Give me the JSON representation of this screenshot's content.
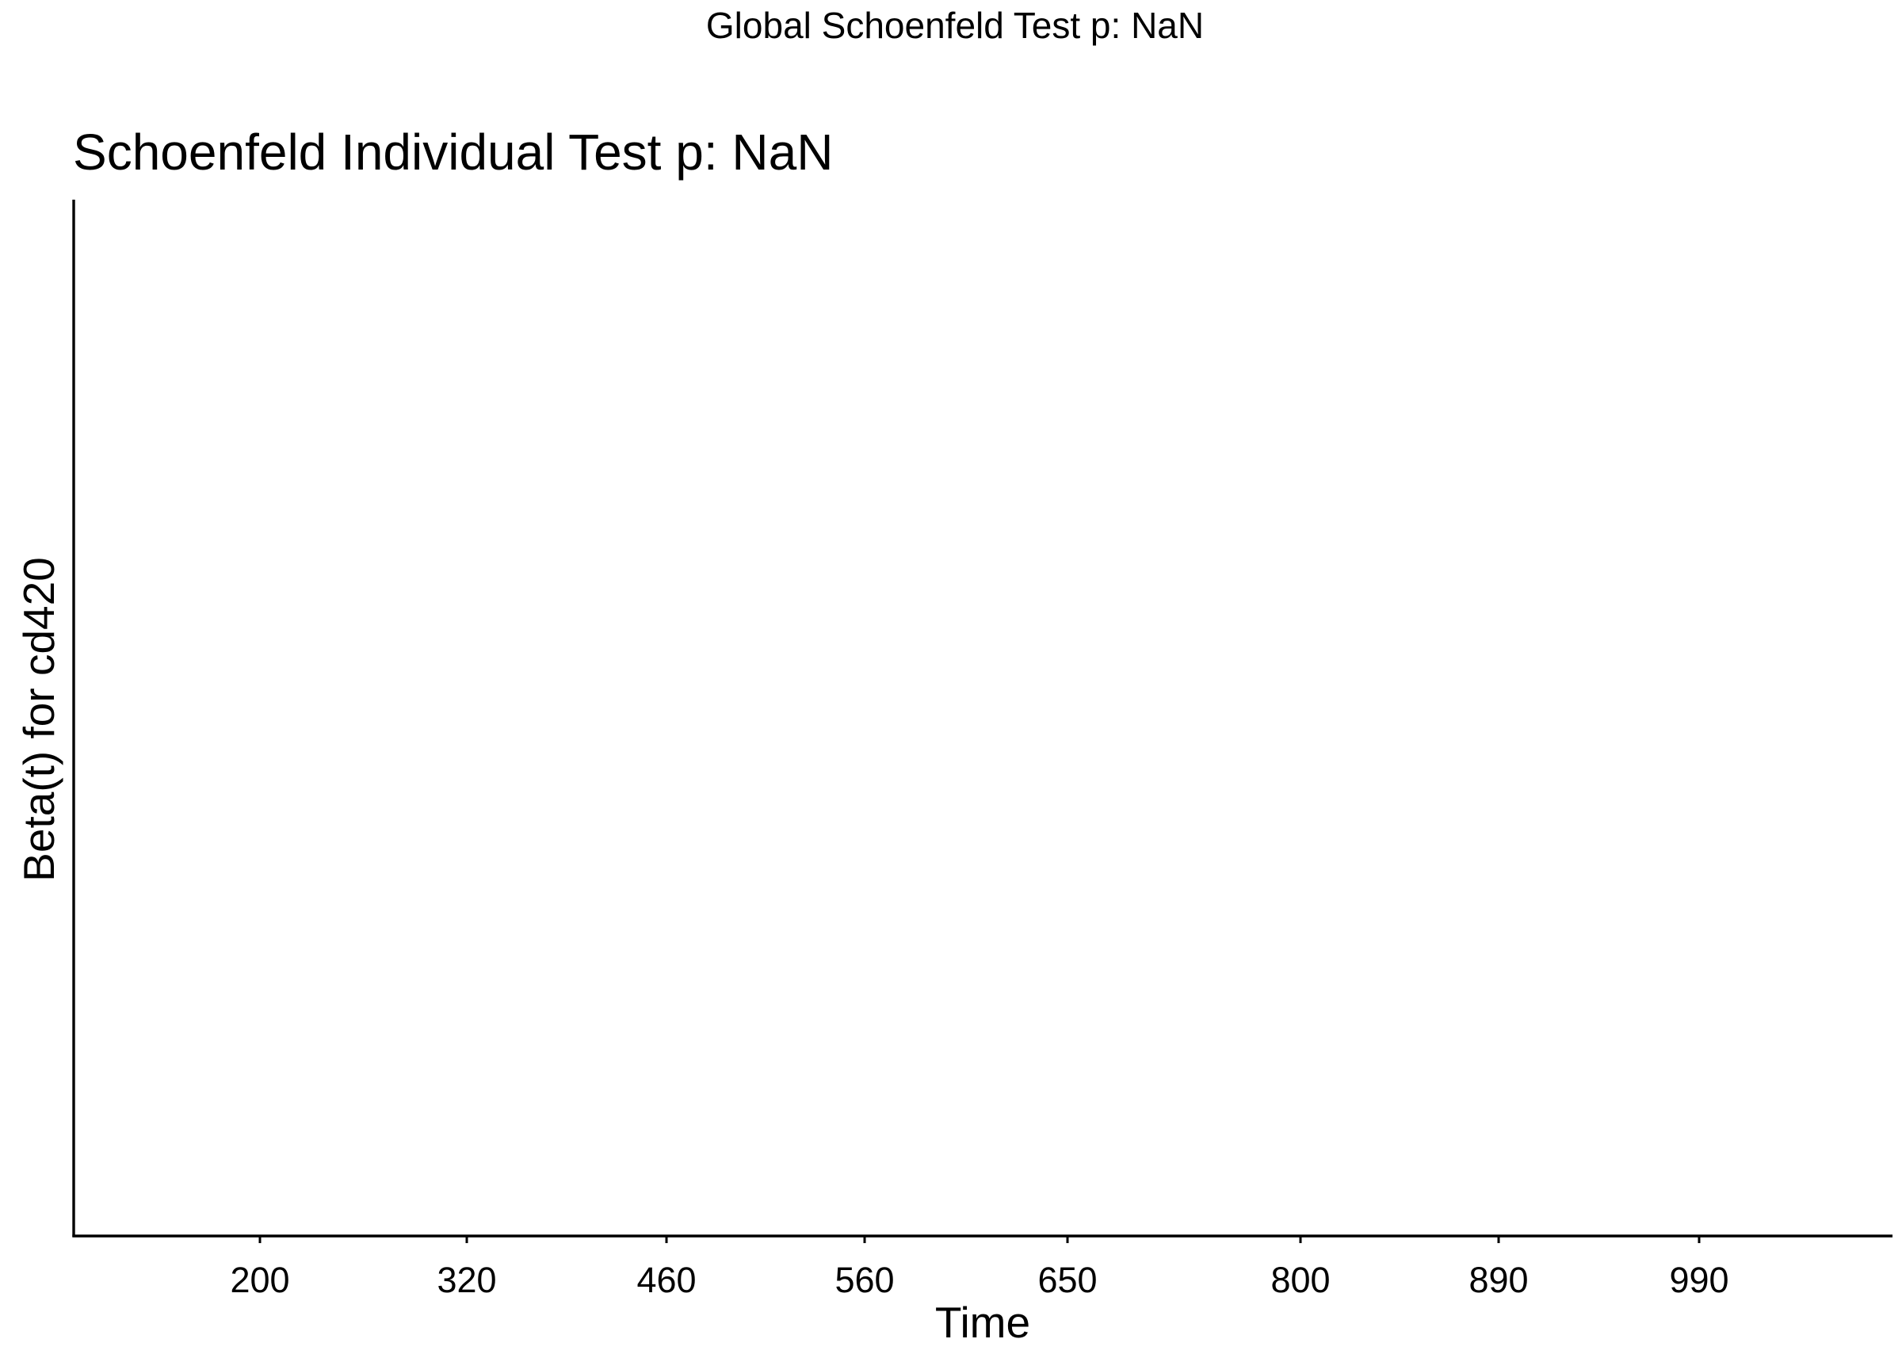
{
  "figure": {
    "global_title": "Global Schoenfeld Test p: NaN"
  },
  "chart_data": {
    "type": "scatter",
    "title": "Schoenfeld Individual Test p: NaN",
    "xlabel": "Time",
    "ylabel": "Beta(t) for cd420",
    "x_ticks": [
      {
        "label": "200",
        "value": 200
      },
      {
        "label": "320",
        "value": 320
      },
      {
        "label": "460",
        "value": 460
      },
      {
        "label": "560",
        "value": 560
      },
      {
        "label": "650",
        "value": 650
      },
      {
        "label": "800",
        "value": 800
      },
      {
        "label": "890",
        "value": 890
      },
      {
        "label": "990",
        "value": 990
      }
    ],
    "y_ticks": [],
    "series": [],
    "grid": false,
    "legend": "none"
  }
}
